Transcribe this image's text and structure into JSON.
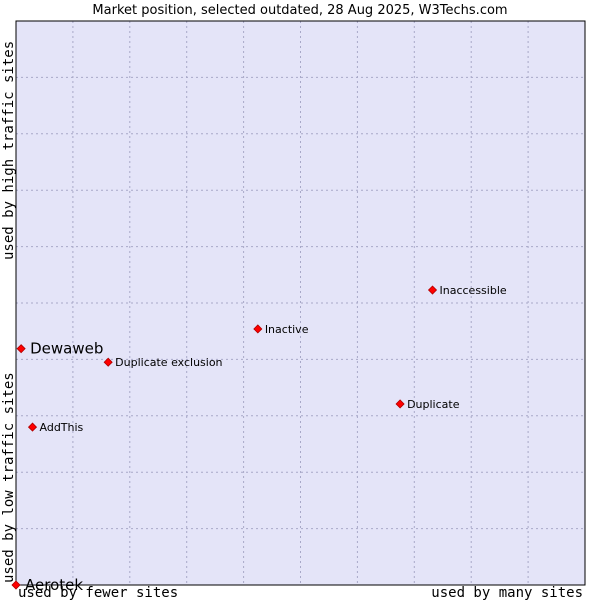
{
  "chart_data": {
    "type": "scatter",
    "title": "Market position, selected outdated, 28 Aug 2025, W3Techs.com",
    "xlabel_left": "used by fewer sites",
    "xlabel_right": "used by many sites",
    "ylabel_low": "used by low traffic sites",
    "ylabel_high": "used by high traffic sites",
    "xlim": [
      0,
      100
    ],
    "ylim": [
      0,
      100
    ],
    "grid": true,
    "colors": {
      "plot_background": "#e4e4f8",
      "point": "#ff0000",
      "point_outline": "#b00000",
      "border": "#000000"
    },
    "points": [
      {
        "label": "Inaccessible",
        "x": 73.2,
        "y": 52.3,
        "highlight": false
      },
      {
        "label": "Inactive",
        "x": 42.5,
        "y": 45.4,
        "highlight": false
      },
      {
        "label": "Dewaweb",
        "x": 0.9,
        "y": 41.9,
        "highlight": true
      },
      {
        "label": "Duplicate exclusion",
        "x": 16.2,
        "y": 39.5,
        "highlight": false
      },
      {
        "label": "Duplicate",
        "x": 67.5,
        "y": 32.1,
        "highlight": false
      },
      {
        "label": "AddThis",
        "x": 2.9,
        "y": 28.0,
        "highlight": false
      },
      {
        "label": "Aerotek",
        "x": 0.0,
        "y": 0.0,
        "highlight": true
      }
    ]
  }
}
